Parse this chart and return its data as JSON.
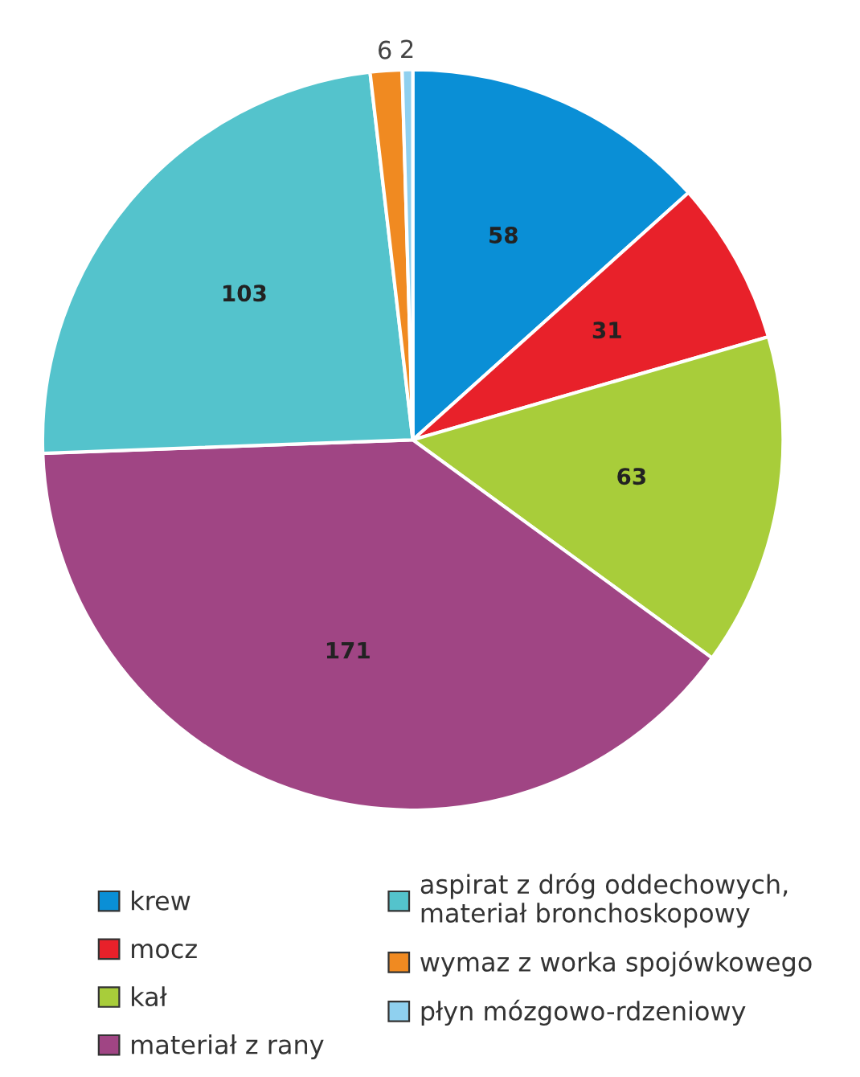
{
  "chart_data": {
    "type": "pie",
    "categories": [
      "krew",
      "mocz",
      "kał",
      "materiał z rany",
      "aspirat z dróg oddechowych,\nmateriał bronchoskopowy",
      "wymaz z worka spojówkowego",
      "płyn mózgowo-rdzeniowy"
    ],
    "values": [
      58,
      31,
      63,
      171,
      103,
      6,
      2
    ],
    "colors": [
      "#0a8fd6",
      "#e8212a",
      "#a8cd3a",
      "#a04584",
      "#54c3cc",
      "#f08a21",
      "#8fd0ef"
    ],
    "data_labels": true,
    "legend": "bottom"
  }
}
